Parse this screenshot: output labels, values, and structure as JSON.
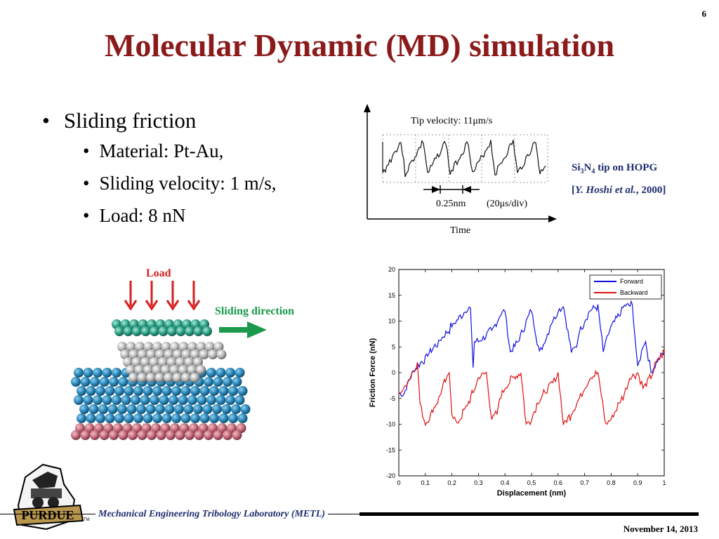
{
  "page_number": "6",
  "title": "Molecular Dynamic (MD) simulation",
  "bullets": {
    "main": "Sliding friction",
    "sub": [
      "Material: Pt-Au,",
      "Sliding velocity: 1 m/s,",
      "Load: 8 nN"
    ]
  },
  "afm_figure": {
    "tip_velocity": "Tip velocity: 11μm/s",
    "spacing": "0.25nm",
    "scale": "(20μs/div)",
    "time_label": "Time"
  },
  "citation": {
    "line1_si": "Si",
    "line1_sub3": "3",
    "line1_n": "N",
    "line1_sub4": "4",
    "line1_rest": " tip on HOPG",
    "line2_open": "[",
    "line2_author": "Y. Hoshi et al.",
    "line2_year": ", 2000]"
  },
  "md_figure": {
    "load_label": "Load",
    "sliding_label": "Sliding direction",
    "load_color": "#d81e1e",
    "sliding_color": "#1a9a4a"
  },
  "chart_data": {
    "type": "line",
    "xlabel": "Displacement (nm)",
    "ylabel": "Friction Force (nN)",
    "xlim": [
      0,
      1
    ],
    "ylim": [
      -20,
      20
    ],
    "xticks": [
      "0",
      "0.1",
      "0.2",
      "0.3",
      "0.4",
      "0.5",
      "0.6",
      "0.7",
      "0.8",
      "0.9",
      "1"
    ],
    "yticks": [
      "-20",
      "-15",
      "-10",
      "-5",
      "0",
      "5",
      "10",
      "15",
      "20"
    ],
    "legend_position": "top-right",
    "series": [
      {
        "name": "Forward",
        "color": "#1010e0",
        "x": [
          0.0,
          0.02,
          0.05,
          0.1,
          0.15,
          0.2,
          0.25,
          0.27,
          0.28,
          0.285,
          0.3,
          0.35,
          0.38,
          0.4,
          0.42,
          0.45,
          0.48,
          0.5,
          0.53,
          0.55,
          0.57,
          0.58,
          0.6,
          0.62,
          0.65,
          0.67,
          0.68,
          0.7,
          0.72,
          0.75,
          0.77,
          0.78,
          0.8,
          0.83,
          0.85,
          0.88,
          0.9,
          0.92,
          0.93,
          0.95,
          0.97,
          1.0
        ],
        "y": [
          -4,
          -4,
          0,
          3,
          6,
          9,
          12,
          12.5,
          1,
          6,
          6,
          8,
          11,
          12,
          4,
          6,
          10,
          12,
          4,
          6,
          9,
          10,
          12,
          13,
          4,
          5,
          8,
          10,
          12,
          13,
          4,
          6,
          9,
          11,
          13,
          13,
          1,
          5,
          6,
          0,
          2,
          4
        ]
      },
      {
        "name": "Backward",
        "color": "#e01010",
        "x": [
          0.0,
          0.02,
          0.05,
          0.07,
          0.08,
          0.1,
          0.12,
          0.15,
          0.18,
          0.19,
          0.2,
          0.22,
          0.25,
          0.28,
          0.3,
          0.33,
          0.35,
          0.37,
          0.38,
          0.4,
          0.43,
          0.46,
          0.48,
          0.5,
          0.52,
          0.55,
          0.58,
          0.6,
          0.62,
          0.65,
          0.68,
          0.7,
          0.72,
          0.75,
          0.78,
          0.8,
          0.83,
          0.85,
          0.87,
          0.9,
          0.92,
          0.95,
          0.97,
          1.0
        ],
        "y": [
          -4,
          -3,
          0,
          2,
          -6,
          -10,
          -8,
          -5,
          -1,
          0,
          -8,
          -10,
          -7,
          -4,
          -1,
          0,
          -9,
          -8,
          -5,
          -3,
          -1,
          0,
          -10,
          -9,
          -6,
          -4,
          -2,
          0,
          -10,
          -8,
          -5,
          -3,
          -1,
          0,
          -10,
          -9,
          -6,
          -4,
          -1,
          0,
          -3,
          -1,
          2,
          4
        ]
      }
    ]
  },
  "footer": {
    "lab": "Mechanical Engineering Tribology Laboratory (METL)",
    "date": "November 14, 2013",
    "logo_text": "PURDUE",
    "tm": "TM"
  }
}
